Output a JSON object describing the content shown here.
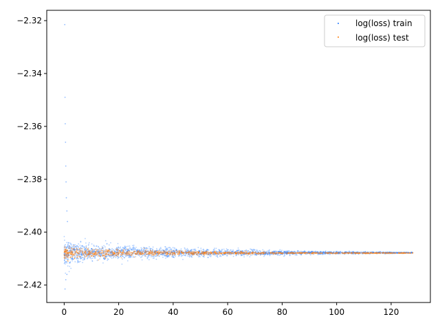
{
  "chart_data": {
    "type": "scatter",
    "title": "",
    "xlabel": "",
    "ylabel": "",
    "xlim": [
      -6.4,
      134.4
    ],
    "ylim": [
      -2.4266,
      -2.3161
    ],
    "xticks": [
      0,
      20,
      40,
      60,
      80,
      100,
      120
    ],
    "xtick_labels": [
      "0",
      "20",
      "40",
      "60",
      "80",
      "100",
      "120"
    ],
    "yticks": [
      -2.42,
      -2.4,
      -2.38,
      -2.36,
      -2.34,
      -2.32
    ],
    "ytick_labels": [
      "−2.42",
      "−2.40",
      "−2.38",
      "−2.36",
      "−2.34",
      "−2.32"
    ],
    "grid": false,
    "legend_position": "top-right",
    "series": [
      {
        "name": "log(loss) train",
        "color": "#1f77ff",
        "center": -2.4078,
        "x_range": [
          0,
          128
        ],
        "spread_profile": [
          [
            0,
            0.0045
          ],
          [
            10,
            0.0032
          ],
          [
            20,
            0.0026
          ],
          [
            40,
            0.0018
          ],
          [
            60,
            0.0012
          ],
          [
            80,
            0.0008
          ],
          [
            100,
            0.0005
          ],
          [
            128,
            0.0002
          ]
        ],
        "outliers": [
          [
            0.2,
            -2.3215
          ],
          [
            0.3,
            -2.349
          ],
          [
            0.4,
            -2.359
          ],
          [
            0.5,
            -2.366
          ],
          [
            0.6,
            -2.375
          ],
          [
            0.7,
            -2.381
          ],
          [
            0.8,
            -2.387
          ],
          [
            1.0,
            -2.392
          ],
          [
            1.2,
            -2.396
          ],
          [
            0.3,
            -2.4215
          ],
          [
            0.6,
            -2.418
          ],
          [
            1.0,
            -2.416
          ]
        ]
      },
      {
        "name": "log(loss) test",
        "color": "#ff7f0e",
        "center": -2.4079,
        "x_range": [
          0,
          128
        ],
        "spread_profile": [
          [
            0,
            0.0028
          ],
          [
            10,
            0.0018
          ],
          [
            20,
            0.0013
          ],
          [
            40,
            0.0008
          ],
          [
            60,
            0.0005
          ],
          [
            80,
            0.0003
          ],
          [
            100,
            0.0002
          ],
          [
            128,
            0.0001
          ]
        ],
        "outliers": []
      }
    ]
  }
}
